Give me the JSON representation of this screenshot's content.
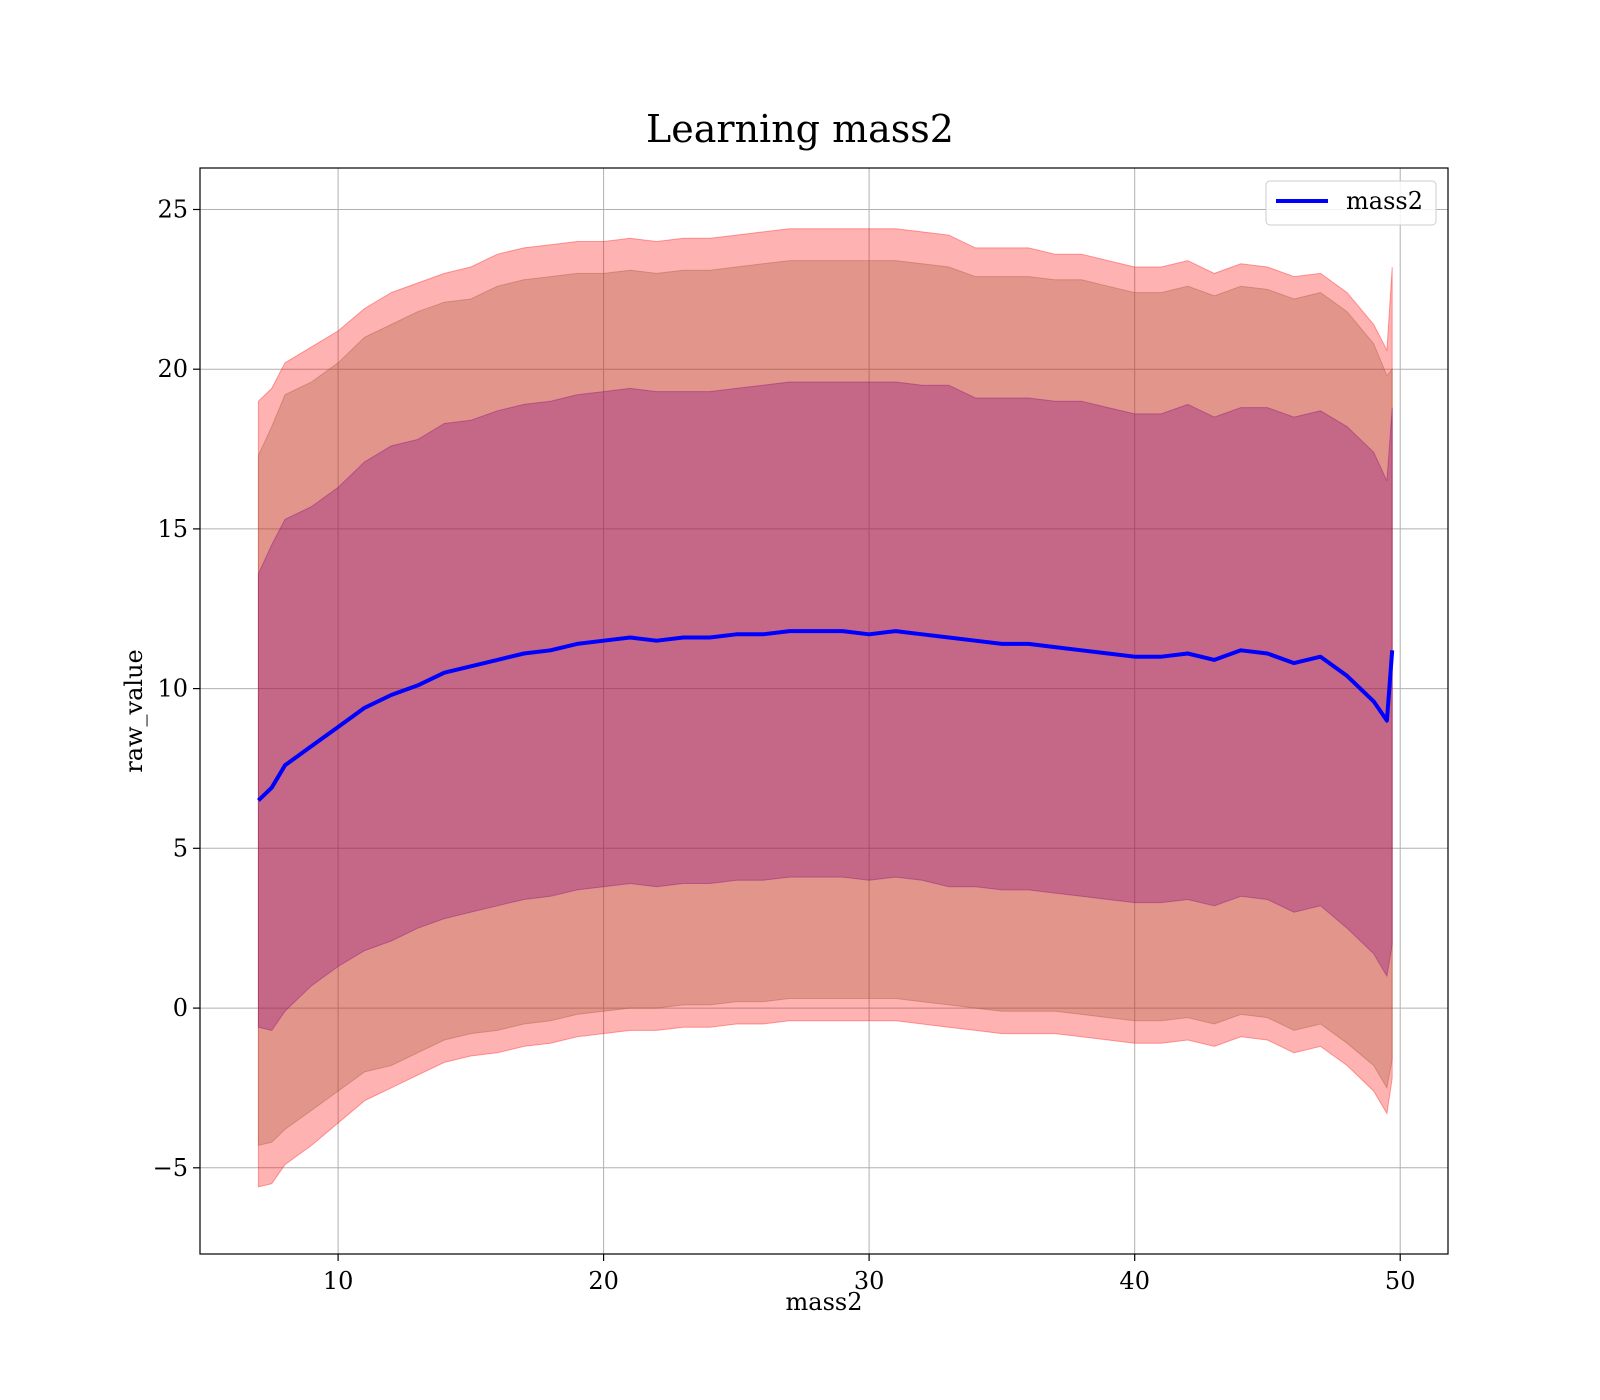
{
  "chart_data": {
    "type": "area",
    "title": "Learning mass2",
    "xlabel": "mass2",
    "ylabel": "raw_value",
    "xlim": [
      4.8,
      51.8
    ],
    "ylim": [
      -7.7,
      26.3
    ],
    "grid": true,
    "legend_position": "top-right",
    "x_ticks": [
      10,
      20,
      30,
      40,
      50
    ],
    "y_ticks": [
      -5,
      0,
      5,
      10,
      15,
      20,
      25
    ],
    "x_tick_labels": [
      "10",
      "20",
      "30",
      "40",
      "50"
    ],
    "y_tick_labels": [
      "−5",
      "0",
      "5",
      "10",
      "15",
      "20",
      "25"
    ],
    "x": [
      7.0,
      7.5,
      8,
      9,
      10,
      11,
      12,
      13,
      14,
      15,
      16,
      17,
      18,
      19,
      20,
      21,
      22,
      23,
      24,
      25,
      26,
      27,
      28,
      29,
      30,
      31,
      32,
      33,
      34,
      35,
      36,
      37,
      38,
      39,
      40,
      41,
      42,
      43,
      44,
      45,
      46,
      47,
      48,
      49,
      49.5,
      49.7
    ],
    "series": [
      {
        "name": "mass2",
        "color": "#0000ff",
        "values": [
          6.5,
          6.9,
          7.6,
          8.2,
          8.8,
          9.4,
          9.8,
          10.1,
          10.5,
          10.7,
          10.9,
          11.1,
          11.2,
          11.4,
          11.5,
          11.6,
          11.5,
          11.6,
          11.6,
          11.7,
          11.7,
          11.8,
          11.8,
          11.8,
          11.7,
          11.8,
          11.7,
          11.6,
          11.5,
          11.4,
          11.4,
          11.3,
          11.2,
          11.1,
          11.0,
          11.0,
          11.1,
          10.9,
          11.2,
          11.1,
          10.8,
          11.0,
          10.4,
          9.6,
          9.0,
          11.2
        ]
      }
    ],
    "bands": [
      {
        "sigma": 1,
        "color": "#800080",
        "upper": [
          13.6,
          14.5,
          15.3,
          15.7,
          16.3,
          17.1,
          17.6,
          17.8,
          18.3,
          18.4,
          18.7,
          18.9,
          19.0,
          19.2,
          19.3,
          19.4,
          19.3,
          19.3,
          19.3,
          19.4,
          19.5,
          19.6,
          19.6,
          19.6,
          19.6,
          19.6,
          19.5,
          19.5,
          19.1,
          19.1,
          19.1,
          19.0,
          19.0,
          18.8,
          18.6,
          18.6,
          18.9,
          18.5,
          18.8,
          18.8,
          18.5,
          18.7,
          18.2,
          17.4,
          16.5,
          18.8
        ],
        "lower": [
          -0.6,
          -0.7,
          -0.1,
          0.7,
          1.3,
          1.8,
          2.1,
          2.5,
          2.8,
          3.0,
          3.2,
          3.4,
          3.5,
          3.7,
          3.8,
          3.9,
          3.8,
          3.9,
          3.9,
          4.0,
          4.0,
          4.1,
          4.1,
          4.1,
          4.0,
          4.1,
          4.0,
          3.8,
          3.8,
          3.7,
          3.7,
          3.6,
          3.5,
          3.4,
          3.3,
          3.3,
          3.4,
          3.2,
          3.5,
          3.4,
          3.0,
          3.2,
          2.5,
          1.7,
          1.0,
          2.0
        ]
      },
      {
        "sigma": 2,
        "color": "#a0522d",
        "upper": [
          17.3,
          18.2,
          19.2,
          19.6,
          20.2,
          21.0,
          21.4,
          21.8,
          22.1,
          22.2,
          22.6,
          22.8,
          22.9,
          23.0,
          23.0,
          23.1,
          23.0,
          23.1,
          23.1,
          23.2,
          23.3,
          23.4,
          23.4,
          23.4,
          23.4,
          23.4,
          23.3,
          23.2,
          22.9,
          22.9,
          22.9,
          22.8,
          22.8,
          22.6,
          22.4,
          22.4,
          22.6,
          22.3,
          22.6,
          22.5,
          22.2,
          22.4,
          21.8,
          20.8,
          19.8,
          20.0
        ],
        "lower": [
          -4.3,
          -4.2,
          -3.8,
          -3.2,
          -2.6,
          -2.0,
          -1.8,
          -1.4,
          -1.0,
          -0.8,
          -0.7,
          -0.5,
          -0.4,
          -0.2,
          -0.1,
          0.0,
          0.0,
          0.1,
          0.1,
          0.2,
          0.2,
          0.3,
          0.3,
          0.3,
          0.3,
          0.3,
          0.2,
          0.1,
          0.0,
          -0.1,
          -0.1,
          -0.1,
          -0.2,
          -0.3,
          -0.4,
          -0.4,
          -0.3,
          -0.5,
          -0.2,
          -0.3,
          -0.7,
          -0.5,
          -1.1,
          -1.8,
          -2.5,
          -1.6
        ]
      },
      {
        "sigma": 3,
        "color": "#ff0000",
        "upper": [
          19.0,
          19.4,
          20.2,
          20.7,
          21.2,
          21.9,
          22.4,
          22.7,
          23.0,
          23.2,
          23.6,
          23.8,
          23.9,
          24.0,
          24.0,
          24.1,
          24.0,
          24.1,
          24.1,
          24.2,
          24.3,
          24.4,
          24.4,
          24.4,
          24.4,
          24.4,
          24.3,
          24.2,
          23.8,
          23.8,
          23.8,
          23.6,
          23.6,
          23.4,
          23.2,
          23.2,
          23.4,
          23.0,
          23.3,
          23.2,
          22.9,
          23.0,
          22.4,
          21.4,
          20.6,
          23.2
        ],
        "lower": [
          -5.6,
          -5.5,
          -4.9,
          -4.3,
          -3.6,
          -2.9,
          -2.5,
          -2.1,
          -1.7,
          -1.5,
          -1.4,
          -1.2,
          -1.1,
          -0.9,
          -0.8,
          -0.7,
          -0.7,
          -0.6,
          -0.6,
          -0.5,
          -0.5,
          -0.4,
          -0.4,
          -0.4,
          -0.4,
          -0.4,
          -0.5,
          -0.6,
          -0.7,
          -0.8,
          -0.8,
          -0.8,
          -0.9,
          -1.0,
          -1.1,
          -1.1,
          -1.0,
          -1.2,
          -0.9,
          -1.0,
          -1.4,
          -1.2,
          -1.8,
          -2.6,
          -3.3,
          -2.2
        ]
      }
    ],
    "legend": [
      {
        "label": "mass2",
        "color": "#0000ff"
      }
    ]
  }
}
